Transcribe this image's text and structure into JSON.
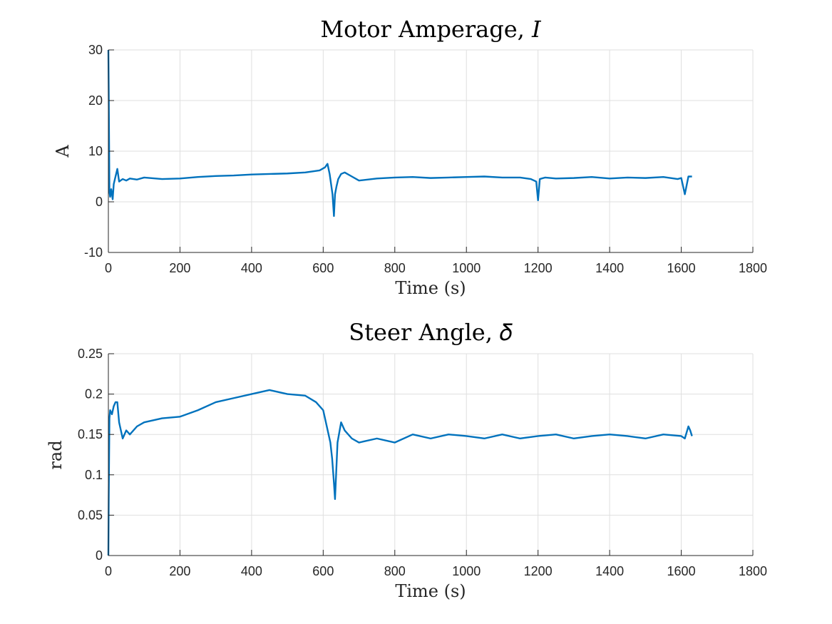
{
  "colors": {
    "series": "#0072BD",
    "grid": "#dfdfdf",
    "axis": "#262626"
  },
  "chart_data": [
    {
      "type": "line",
      "title": "Motor Amperage, 𝐼",
      "xlabel": "Time (s)",
      "ylabel": "A",
      "xlim": [
        0,
        1800
      ],
      "ylim": [
        -10,
        30
      ],
      "xticks": [
        0,
        200,
        400,
        600,
        800,
        1000,
        1200,
        1400,
        1600,
        1800
      ],
      "xtick_labels": [
        "0",
        "200",
        "400",
        "600",
        "800",
        "1000",
        "1200",
        "1400",
        "1600",
        "1800"
      ],
      "yticks": [
        -10,
        0,
        10,
        20,
        30
      ],
      "ytick_labels": [
        "-10",
        "0",
        "10",
        "20",
        "30"
      ],
      "grid": true,
      "series": [
        {
          "x": [
            0,
            1,
            2,
            3,
            5,
            8,
            12,
            15,
            20,
            25,
            30,
            40,
            50,
            60,
            80,
            100,
            150,
            200,
            250,
            300,
            350,
            400,
            450,
            500,
            550,
            590,
            605,
            612,
            618,
            622,
            626,
            630,
            633,
            637,
            642,
            650,
            660,
            680,
            700,
            750,
            800,
            850,
            900,
            950,
            1000,
            1050,
            1100,
            1150,
            1180,
            1195,
            1200,
            1205,
            1220,
            1250,
            1300,
            1350,
            1400,
            1450,
            1500,
            1550,
            1590,
            1600,
            1610,
            1620,
            1630
          ],
          "y": [
            30,
            22,
            12,
            2,
            1,
            2.5,
            0.5,
            3.5,
            5,
            6.5,
            4,
            4.5,
            4.2,
            4.6,
            4.4,
            4.8,
            4.5,
            4.6,
            4.9,
            5.1,
            5.2,
            5.4,
            5.5,
            5.6,
            5.8,
            6.2,
            6.8,
            7.5,
            5.5,
            3.5,
            1.5,
            -2.8,
            1.5,
            3,
            4.5,
            5.5,
            5.8,
            5,
            4.2,
            4.6,
            4.8,
            4.9,
            4.7,
            4.8,
            4.9,
            5,
            4.8,
            4.8,
            4.5,
            4,
            0.3,
            4.5,
            4.8,
            4.6,
            4.7,
            4.9,
            4.6,
            4.8,
            4.7,
            4.9,
            4.5,
            4.7,
            1.5,
            5,
            5
          ]
        }
      ]
    },
    {
      "type": "line",
      "title": "Steer Angle, 𝛿",
      "xlabel": "Time (s)",
      "ylabel": "rad",
      "xlim": [
        0,
        1800
      ],
      "ylim": [
        0,
        0.25
      ],
      "xticks": [
        0,
        200,
        400,
        600,
        800,
        1000,
        1200,
        1400,
        1600,
        1800
      ],
      "xtick_labels": [
        "0",
        "200",
        "400",
        "600",
        "800",
        "1000",
        "1200",
        "1400",
        "1600",
        "1800"
      ],
      "yticks": [
        0,
        0.05,
        0.1,
        0.15,
        0.2,
        0.25
      ],
      "ytick_labels": [
        "0",
        "0.05",
        "0.1",
        "0.15",
        "0.2",
        "0.25"
      ],
      "grid": true,
      "series": [
        {
          "x": [
            0,
            1,
            2,
            3,
            5,
            10,
            15,
            20,
            25,
            30,
            40,
            50,
            60,
            80,
            100,
            150,
            200,
            250,
            300,
            350,
            400,
            450,
            500,
            550,
            580,
            600,
            610,
            620,
            625,
            630,
            633,
            640,
            650,
            660,
            680,
            700,
            750,
            800,
            850,
            900,
            950,
            1000,
            1050,
            1100,
            1150,
            1200,
            1250,
            1300,
            1350,
            1400,
            1450,
            1500,
            1550,
            1600,
            1610,
            1620,
            1625,
            1630
          ],
          "y": [
            0,
            0.07,
            0.12,
            0.17,
            0.18,
            0.175,
            0.185,
            0.19,
            0.19,
            0.165,
            0.145,
            0.155,
            0.15,
            0.16,
            0.165,
            0.17,
            0.172,
            0.18,
            0.19,
            0.195,
            0.2,
            0.205,
            0.2,
            0.198,
            0.19,
            0.18,
            0.16,
            0.14,
            0.12,
            0.09,
            0.07,
            0.14,
            0.165,
            0.155,
            0.145,
            0.14,
            0.145,
            0.14,
            0.15,
            0.145,
            0.15,
            0.148,
            0.145,
            0.15,
            0.145,
            0.148,
            0.15,
            0.145,
            0.148,
            0.15,
            0.148,
            0.145,
            0.15,
            0.148,
            0.145,
            0.16,
            0.155,
            0.148
          ]
        }
      ]
    }
  ]
}
